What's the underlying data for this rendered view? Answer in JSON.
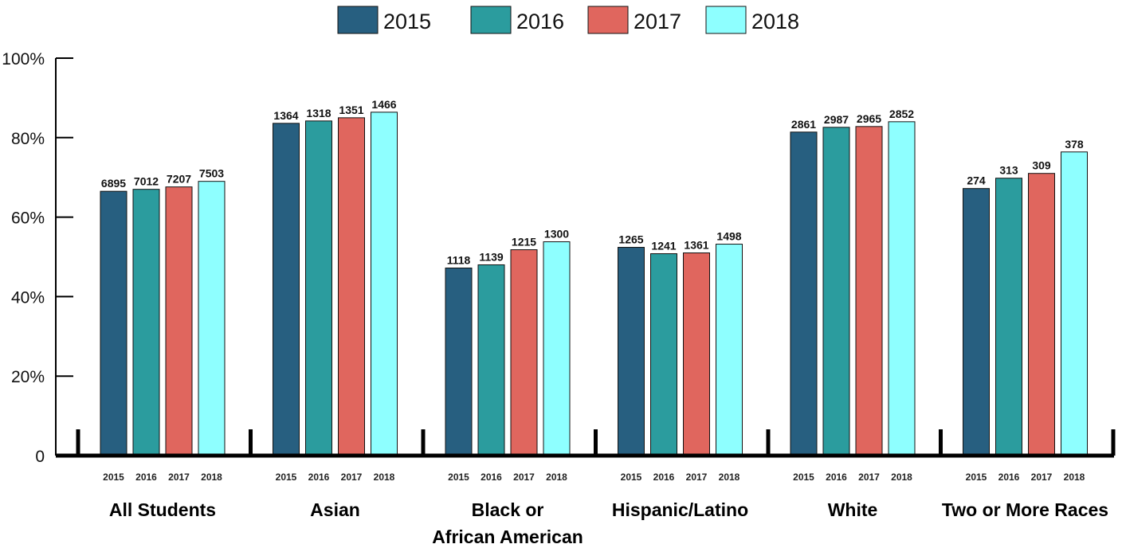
{
  "chart_data": {
    "type": "bar",
    "title": "",
    "xlabel": "",
    "ylabel": "",
    "ylim": [
      0,
      100
    ],
    "y_unit": "%",
    "y_ticks": [
      "0",
      "20%",
      "40%",
      "60%",
      "80%",
      "100%"
    ],
    "legend_position": "top-center",
    "grid": false,
    "series": [
      {
        "name": "2015",
        "color": "#275F80"
      },
      {
        "name": "2016",
        "color": "#2B9C9E"
      },
      {
        "name": "2017",
        "color": "#E0665E"
      },
      {
        "name": "2018",
        "color": "#8EFFFF"
      }
    ],
    "groups": [
      {
        "label": [
          "All Students"
        ],
        "bars": [
          {
            "year": "2015",
            "percent": 66.5,
            "label": "6895"
          },
          {
            "year": "2016",
            "percent": 67.0,
            "label": "7012"
          },
          {
            "year": "2017",
            "percent": 67.6,
            "label": "7207"
          },
          {
            "year": "2018",
            "percent": 69.0,
            "label": "7503"
          }
        ]
      },
      {
        "label": [
          "Asian"
        ],
        "bars": [
          {
            "year": "2015",
            "percent": 83.6,
            "label": "1364"
          },
          {
            "year": "2016",
            "percent": 84.2,
            "label": "1318"
          },
          {
            "year": "2017",
            "percent": 85.0,
            "label": "1351"
          },
          {
            "year": "2018",
            "percent": 86.4,
            "label": "1466"
          }
        ]
      },
      {
        "label": [
          "Black or",
          "African American"
        ],
        "bars": [
          {
            "year": "2015",
            "percent": 47.2,
            "label": "1118"
          },
          {
            "year": "2016",
            "percent": 48.0,
            "label": "1139"
          },
          {
            "year": "2017",
            "percent": 51.8,
            "label": "1215"
          },
          {
            "year": "2018",
            "percent": 53.8,
            "label": "1300"
          }
        ]
      },
      {
        "label": [
          "Hispanic/Latino"
        ],
        "bars": [
          {
            "year": "2015",
            "percent": 52.4,
            "label": "1265"
          },
          {
            "year": "2016",
            "percent": 50.8,
            "label": "1241"
          },
          {
            "year": "2017",
            "percent": 51.0,
            "label": "1361"
          },
          {
            "year": "2018",
            "percent": 53.2,
            "label": "1498"
          }
        ]
      },
      {
        "label": [
          "White"
        ],
        "bars": [
          {
            "year": "2015",
            "percent": 81.4,
            "label": "2861"
          },
          {
            "year": "2016",
            "percent": 82.6,
            "label": "2987"
          },
          {
            "year": "2017",
            "percent": 82.8,
            "label": "2965"
          },
          {
            "year": "2018",
            "percent": 84.0,
            "label": "2852"
          }
        ]
      },
      {
        "label": [
          "Two or More Races"
        ],
        "bars": [
          {
            "year": "2015",
            "percent": 67.2,
            "label": "274"
          },
          {
            "year": "2016",
            "percent": 69.8,
            "label": "313"
          },
          {
            "year": "2017",
            "percent": 71.0,
            "label": "309"
          },
          {
            "year": "2018",
            "percent": 76.4,
            "label": "378"
          }
        ]
      }
    ]
  }
}
